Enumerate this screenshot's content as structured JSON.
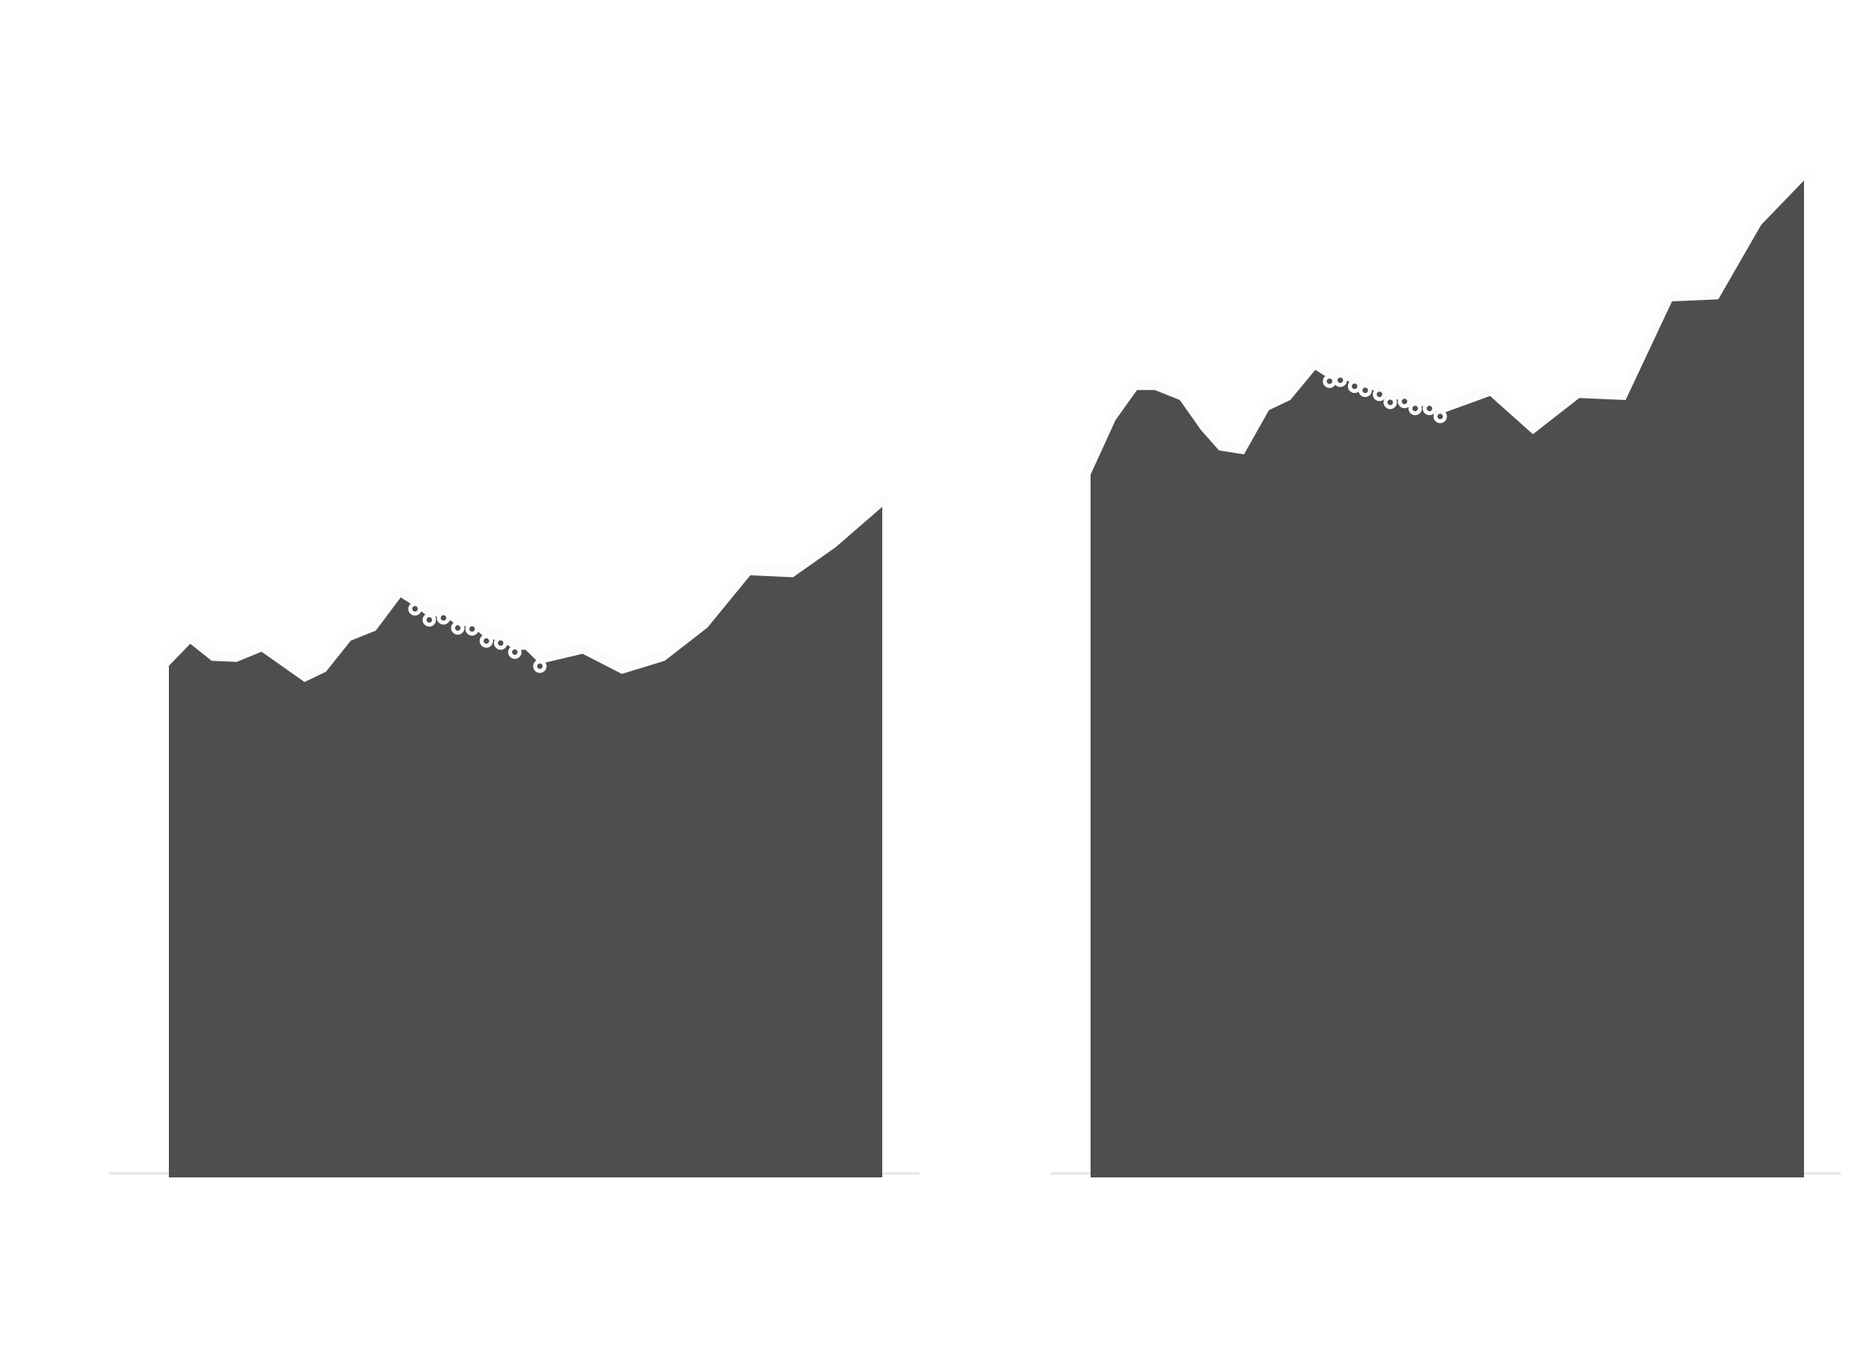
{
  "chart_data": [
    {
      "type": "area",
      "fill_color": "#4d4e50",
      "edge_color": "#fcfcfc",
      "baseline_color": "#e6e6e6",
      "background_color": "#ffffff",
      "grid": false,
      "legend": "none",
      "ylim": [
        0,
        100
      ],
      "points": [
        [
          0.0,
          50.8
        ],
        [
          3.0,
          53.0
        ],
        [
          6.0,
          51.3
        ],
        [
          9.5,
          51.2
        ],
        [
          13.0,
          52.2
        ],
        [
          19.0,
          49.2
        ],
        [
          22.0,
          50.2
        ],
        [
          25.5,
          53.3
        ],
        [
          29.0,
          54.3
        ],
        [
          32.5,
          57.6
        ],
        [
          34.5,
          56.7
        ],
        [
          36.5,
          55.6
        ],
        [
          38.5,
          55.8
        ],
        [
          40.5,
          54.8
        ],
        [
          42.5,
          54.7
        ],
        [
          44.5,
          53.5
        ],
        [
          46.5,
          53.3
        ],
        [
          48.5,
          52.4
        ],
        [
          50.0,
          52.4
        ],
        [
          52.0,
          51.0
        ],
        [
          58.0,
          52.0
        ],
        [
          63.5,
          50.0
        ],
        [
          69.5,
          51.3
        ],
        [
          75.5,
          54.6
        ],
        [
          81.5,
          59.8
        ],
        [
          87.5,
          59.6
        ],
        [
          93.5,
          62.6
        ],
        [
          100.0,
          66.6
        ]
      ],
      "markers": [
        [
          34.5,
          56.7
        ],
        [
          36.5,
          55.6
        ],
        [
          38.5,
          55.8
        ],
        [
          40.5,
          54.8
        ],
        [
          42.5,
          54.7
        ],
        [
          44.5,
          53.5
        ],
        [
          46.5,
          53.3
        ],
        [
          48.5,
          52.4
        ],
        [
          52.0,
          51.0
        ]
      ]
    },
    {
      "type": "area",
      "fill_color": "#4d4e50",
      "edge_color": "#fcfcfc",
      "baseline_color": "#e6e6e6",
      "background_color": "#ffffff",
      "grid": false,
      "legend": "none",
      "ylim": [
        0,
        100
      ],
      "points": [
        [
          0.0,
          69.8
        ],
        [
          3.5,
          75.2
        ],
        [
          6.5,
          78.2
        ],
        [
          9.0,
          78.2
        ],
        [
          12.5,
          77.2
        ],
        [
          15.5,
          74.2
        ],
        [
          18.0,
          72.2
        ],
        [
          21.5,
          71.8
        ],
        [
          25.0,
          76.2
        ],
        [
          28.0,
          77.2
        ],
        [
          31.5,
          80.2
        ],
        [
          33.5,
          79.3
        ],
        [
          35.0,
          79.4
        ],
        [
          37.0,
          78.8
        ],
        [
          38.5,
          78.4
        ],
        [
          40.5,
          78.0
        ],
        [
          42.0,
          77.2
        ],
        [
          44.0,
          77.3
        ],
        [
          45.5,
          76.6
        ],
        [
          47.5,
          76.6
        ],
        [
          49.0,
          75.8
        ],
        [
          56.0,
          77.6
        ],
        [
          62.0,
          73.8
        ],
        [
          68.5,
          77.4
        ],
        [
          75.0,
          77.2
        ],
        [
          81.5,
          87.0
        ],
        [
          88.0,
          87.2
        ],
        [
          94.0,
          94.6
        ],
        [
          100.0,
          99.0
        ]
      ],
      "markers": [
        [
          33.5,
          79.3
        ],
        [
          35.0,
          79.4
        ],
        [
          37.0,
          78.8
        ],
        [
          38.5,
          78.4
        ],
        [
          40.5,
          78.0
        ],
        [
          42.0,
          77.2
        ],
        [
          44.0,
          77.3
        ],
        [
          45.5,
          76.6
        ],
        [
          47.5,
          76.6
        ],
        [
          49.0,
          75.8
        ]
      ]
    }
  ]
}
